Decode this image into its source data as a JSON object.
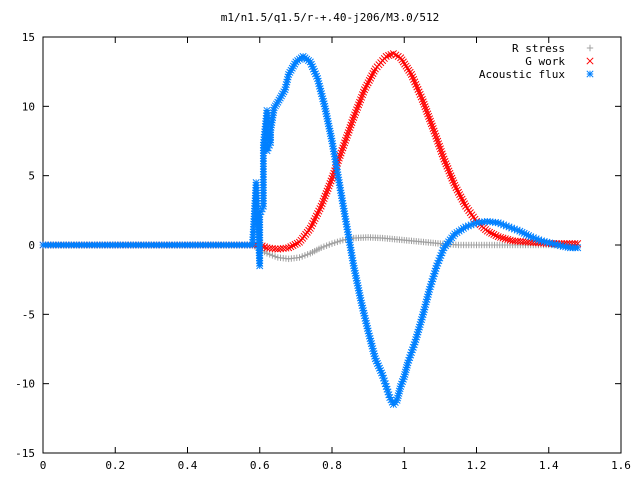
{
  "chart_data": {
    "type": "scatter",
    "title": "m1/n1.5/q1.5/r-+.40-j206/M3.0/512",
    "xlabel": "",
    "ylabel": "",
    "xlim": [
      0,
      1.6
    ],
    "ylim": [
      -15,
      15
    ],
    "x_ticks": [
      "0",
      "0.2",
      "0.4",
      "0.6",
      "0.8",
      "1",
      "1.2",
      "1.4",
      "1.6"
    ],
    "y_ticks": [
      "15",
      "10",
      "5",
      "0",
      "-5",
      "-10",
      "-15"
    ],
    "grid": false,
    "legend_position": "top-right",
    "series": [
      {
        "name": "R stress",
        "marker": "+",
        "color": "#a0a0a0",
        "points": [
          [
            0.0,
            0.0
          ],
          [
            0.1,
            0.0
          ],
          [
            0.2,
            0.0
          ],
          [
            0.3,
            0.0
          ],
          [
            0.4,
            0.0
          ],
          [
            0.5,
            0.0
          ],
          [
            0.58,
            0.0
          ],
          [
            0.6,
            -0.3
          ],
          [
            0.62,
            -0.6
          ],
          [
            0.65,
            -0.9
          ],
          [
            0.68,
            -1.0
          ],
          [
            0.71,
            -0.9
          ],
          [
            0.74,
            -0.6
          ],
          [
            0.77,
            -0.2
          ],
          [
            0.8,
            0.1
          ],
          [
            0.83,
            0.35
          ],
          [
            0.86,
            0.5
          ],
          [
            0.9,
            0.55
          ],
          [
            0.94,
            0.5
          ],
          [
            0.98,
            0.4
          ],
          [
            1.02,
            0.3
          ],
          [
            1.06,
            0.2
          ],
          [
            1.1,
            0.1
          ],
          [
            1.15,
            0.0
          ],
          [
            1.2,
            0.0
          ],
          [
            1.25,
            0.0
          ],
          [
            1.3,
            0.0
          ],
          [
            1.35,
            0.0
          ],
          [
            1.4,
            0.0
          ],
          [
            1.45,
            0.0
          ],
          [
            1.48,
            0.0
          ]
        ]
      },
      {
        "name": "G work",
        "marker": "x",
        "color": "#ff0000",
        "points": [
          [
            0.0,
            0.0
          ],
          [
            0.1,
            0.0
          ],
          [
            0.2,
            0.0
          ],
          [
            0.3,
            0.0
          ],
          [
            0.4,
            0.0
          ],
          [
            0.5,
            0.0
          ],
          [
            0.58,
            0.0
          ],
          [
            0.6,
            0.0
          ],
          [
            0.62,
            -0.2
          ],
          [
            0.65,
            -0.3
          ],
          [
            0.68,
            -0.2
          ],
          [
            0.71,
            0.2
          ],
          [
            0.74,
            1.2
          ],
          [
            0.77,
            2.8
          ],
          [
            0.8,
            4.8
          ],
          [
            0.83,
            7.0
          ],
          [
            0.86,
            9.2
          ],
          [
            0.89,
            11.2
          ],
          [
            0.92,
            12.7
          ],
          [
            0.95,
            13.6
          ],
          [
            0.97,
            13.8
          ],
          [
            0.99,
            13.5
          ],
          [
            1.02,
            12.3
          ],
          [
            1.05,
            10.5
          ],
          [
            1.08,
            8.4
          ],
          [
            1.11,
            6.2
          ],
          [
            1.14,
            4.3
          ],
          [
            1.17,
            2.8
          ],
          [
            1.2,
            1.7
          ],
          [
            1.23,
            1.0
          ],
          [
            1.26,
            0.6
          ],
          [
            1.3,
            0.3
          ],
          [
            1.35,
            0.2
          ],
          [
            1.4,
            0.1
          ],
          [
            1.45,
            0.1
          ],
          [
            1.48,
            0.1
          ]
        ]
      },
      {
        "name": "Acoustic flux",
        "marker": "*",
        "color": "#0080ff",
        "points": [
          [
            0.0,
            0.0
          ],
          [
            0.1,
            0.0
          ],
          [
            0.2,
            0.0
          ],
          [
            0.3,
            0.0
          ],
          [
            0.4,
            0.0
          ],
          [
            0.5,
            0.0
          ],
          [
            0.58,
            0.0
          ],
          [
            0.59,
            4.5
          ],
          [
            0.6,
            -1.5
          ],
          [
            0.6,
            2.2
          ],
          [
            0.61,
            2.8
          ],
          [
            0.61,
            7.2
          ],
          [
            0.62,
            9.7
          ],
          [
            0.62,
            6.8
          ],
          [
            0.63,
            7.4
          ],
          [
            0.63,
            8.3
          ],
          [
            0.64,
            9.9
          ],
          [
            0.65,
            10.3
          ],
          [
            0.67,
            11.2
          ],
          [
            0.68,
            12.3
          ],
          [
            0.7,
            13.2
          ],
          [
            0.72,
            13.6
          ],
          [
            0.74,
            13.2
          ],
          [
            0.76,
            12.0
          ],
          [
            0.78,
            10.0
          ],
          [
            0.8,
            7.5
          ],
          [
            0.82,
            4.5
          ],
          [
            0.84,
            1.5
          ],
          [
            0.86,
            -1.5
          ],
          [
            0.88,
            -4.0
          ],
          [
            0.9,
            -6.2
          ],
          [
            0.92,
            -8.2
          ],
          [
            0.94,
            -9.4
          ],
          [
            0.95,
            -10.2
          ],
          [
            0.96,
            -11.0
          ],
          [
            0.97,
            -11.5
          ],
          [
            0.98,
            -11.2
          ],
          [
            0.99,
            -10.2
          ],
          [
            1.0,
            -9.5
          ],
          [
            1.01,
            -8.5
          ],
          [
            1.03,
            -7.0
          ],
          [
            1.05,
            -5.2
          ],
          [
            1.07,
            -3.2
          ],
          [
            1.09,
            -1.5
          ],
          [
            1.11,
            -0.2
          ],
          [
            1.14,
            0.8
          ],
          [
            1.17,
            1.3
          ],
          [
            1.2,
            1.6
          ],
          [
            1.23,
            1.7
          ],
          [
            1.26,
            1.6
          ],
          [
            1.29,
            1.3
          ],
          [
            1.32,
            1.0
          ],
          [
            1.35,
            0.6
          ],
          [
            1.38,
            0.3
          ],
          [
            1.41,
            0.1
          ],
          [
            1.44,
            -0.1
          ],
          [
            1.46,
            -0.2
          ],
          [
            1.48,
            -0.2
          ]
        ]
      }
    ]
  }
}
